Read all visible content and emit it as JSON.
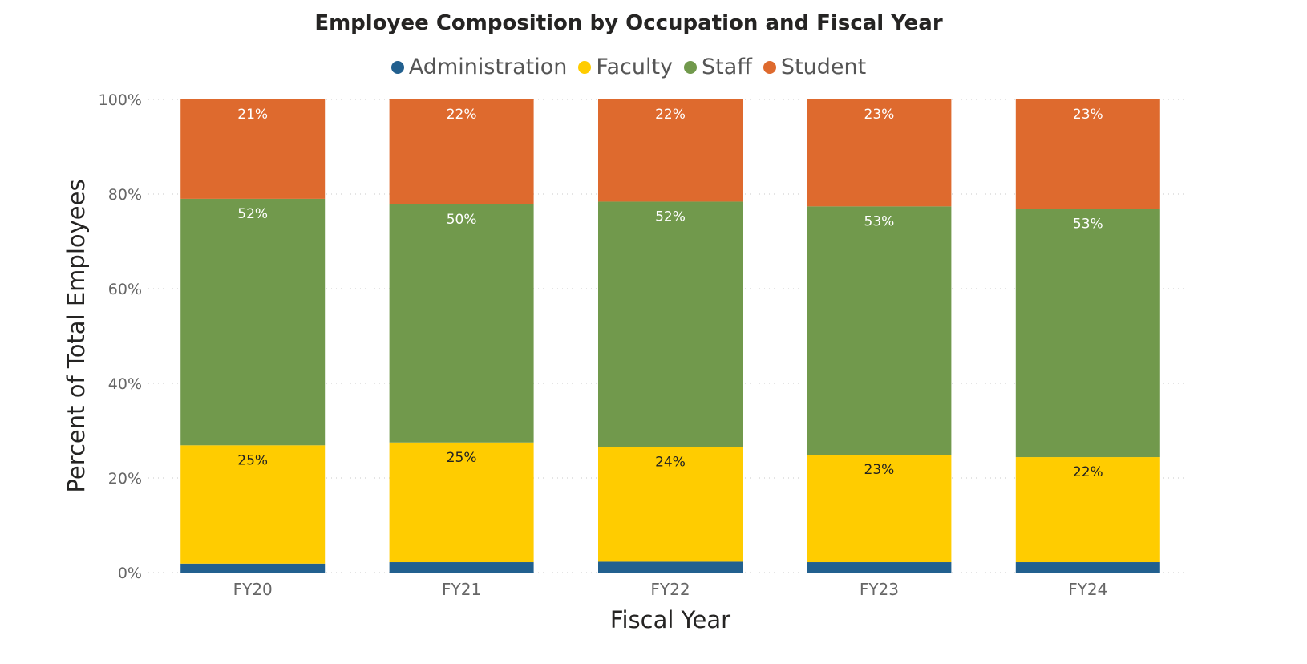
{
  "chart_data": {
    "type": "bar",
    "stacked": "percent",
    "title": "Employee Composition by Occupation and Fiscal Year",
    "xlabel": "Fiscal Year",
    "ylabel": "Percent of Total Employees",
    "ylim": [
      0,
      100
    ],
    "yticks": [
      "0%",
      "20%",
      "40%",
      "60%",
      "80%",
      "100%"
    ],
    "grid": true,
    "legend_position": "top",
    "categories": [
      "FY20",
      "FY21",
      "FY22",
      "FY23",
      "FY24"
    ],
    "series": [
      {
        "name": "Administration",
        "color": "#22608F",
        "values": [
          1.9,
          2.2,
          2.3,
          2.2,
          2.2
        ]
      },
      {
        "name": "Faculty",
        "color": "#FFCC00",
        "values": [
          25.0,
          25.3,
          24.2,
          22.7,
          22.2
        ]
      },
      {
        "name": "Staff",
        "color": "#71994C",
        "values": [
          52.1,
          50.3,
          51.9,
          52.5,
          52.5
        ]
      },
      {
        "name": "Student",
        "color": "#DE6A2E",
        "values": [
          21.0,
          22.2,
          21.6,
          22.6,
          23.1
        ]
      }
    ]
  }
}
